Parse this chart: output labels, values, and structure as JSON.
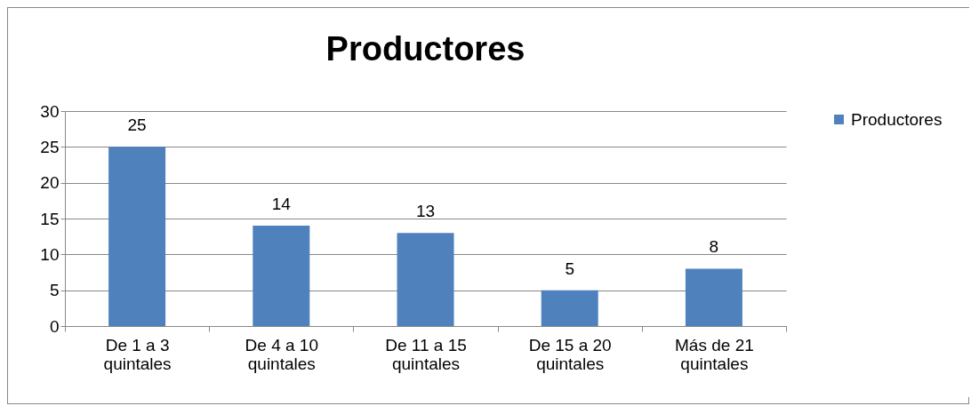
{
  "chart_data": {
    "type": "bar",
    "title": "Productores",
    "categories": [
      "De 1 a 3 quintales",
      "De 4 a 10 quintales",
      "De 11 a 15 quintales",
      "De 15 a 20 quintales",
      "Más de 21 quintales"
    ],
    "series": [
      {
        "name": "Productores",
        "color": "#4f81bd",
        "values": [
          25,
          14,
          13,
          5,
          8
        ]
      }
    ],
    "ylim": [
      0,
      30
    ],
    "yticks": [
      0,
      5,
      10,
      15,
      20,
      25,
      30
    ],
    "grid": "y",
    "legend": "right",
    "data_labels": true
  }
}
